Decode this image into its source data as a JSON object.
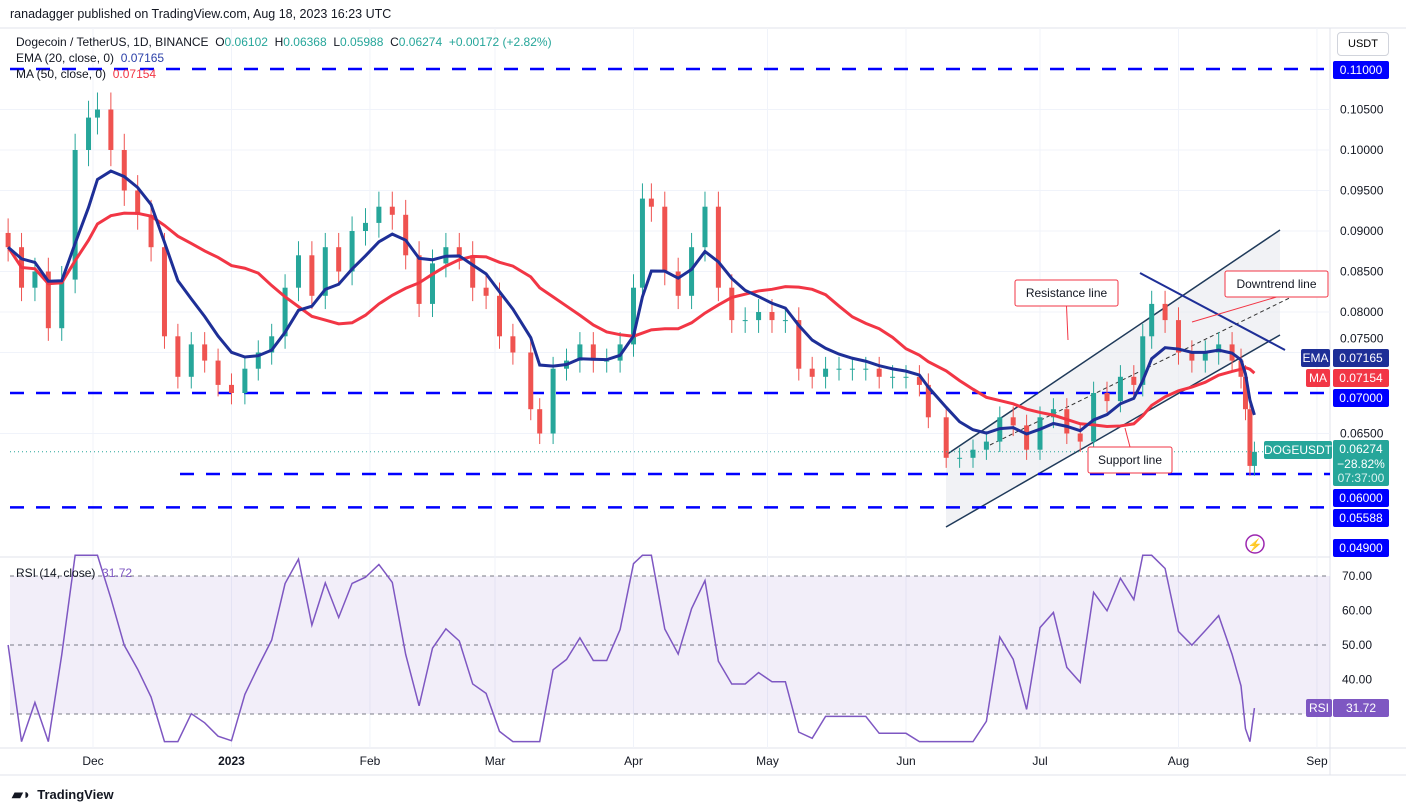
{
  "header": {
    "published": "ranadagger published on TradingView.com, Aug 18, 2023 16:23 UTC"
  },
  "legend": {
    "symbol": "Dogecoin / TetherUS, 1D, BINANCE",
    "o_label": "O",
    "o": "0.06102",
    "h_label": "H",
    "h": "0.06368",
    "l_label": "L",
    "l": "0.05988",
    "c_label": "C",
    "c": "0.06274",
    "change": "+0.00172 (+2.82%)",
    "ema_label": "EMA (20, close, 0)",
    "ema_value": "0.07165",
    "ma_label": "MA (50, close, 0)",
    "ma_value": "0.07154",
    "rsi_label": "RSI (14, close)",
    "rsi_value": "31.72"
  },
  "axis": {
    "currency": "USDT",
    "ticks": [
      "0.10500",
      "0.10000",
      "0.09500",
      "0.09000",
      "0.08500",
      "0.08000",
      "0.07500",
      "0.06500"
    ],
    "tick_values": [
      0.105,
      0.1,
      0.095,
      0.09,
      0.085,
      0.08,
      0.075,
      0.065
    ],
    "level_labels": [
      "0.11000",
      "0.07000",
      "0.06000",
      "0.05588",
      "0.04900"
    ],
    "levels": [
      0.11,
      0.07,
      0.06,
      0.05588,
      0.049
    ],
    "ema_tag": "EMA",
    "ma_tag": "MA",
    "symbol_tag": "DOGEUSDT",
    "last_price": "0.06274",
    "last_change": "−28.82%",
    "countdown": "07:37:00",
    "rsi_ticks": [
      "70.00",
      "60.00",
      "50.00",
      "40.00"
    ],
    "rsi_tag": "RSI",
    "rsi_last": "31.72",
    "time_labels": [
      "Dec",
      "2023",
      "Feb",
      "Mar",
      "Apr",
      "May",
      "Jun",
      "Jul",
      "Aug",
      "Sep"
    ]
  },
  "annotations": {
    "resistance": "Resistance line",
    "support": "Support line",
    "downtrend": "Downtrend line"
  },
  "colors": {
    "up": "#26a69a",
    "down": "#ef5350",
    "ema": "#1e2f97",
    "ma": "#f23645",
    "level": "#0000ff",
    "rsi": "#7e57c2"
  },
  "branding": "TradingView",
  "chart_data": {
    "type": "candlestick",
    "dates": [
      "2022-11-12",
      "2022-11-15",
      "2022-11-18",
      "2022-11-21",
      "2022-11-24",
      "2022-11-27",
      "2022-11-30",
      "2022-12-02",
      "2022-12-05",
      "2022-12-08",
      "2022-12-11",
      "2022-12-14",
      "2022-12-17",
      "2022-12-20",
      "2022-12-23",
      "2022-12-26",
      "2022-12-29",
      "2023-01-01",
      "2023-01-04",
      "2023-01-07",
      "2023-01-10",
      "2023-01-13",
      "2023-01-16",
      "2023-01-19",
      "2023-01-22",
      "2023-01-25",
      "2023-01-28",
      "2023-01-31",
      "2023-02-03",
      "2023-02-06",
      "2023-02-09",
      "2023-02-12",
      "2023-02-15",
      "2023-02-18",
      "2023-02-21",
      "2023-02-24",
      "2023-02-27",
      "2023-03-02",
      "2023-03-05",
      "2023-03-09",
      "2023-03-11",
      "2023-03-14",
      "2023-03-17",
      "2023-03-20",
      "2023-03-23",
      "2023-03-26",
      "2023-03-29",
      "2023-04-01",
      "2023-04-03",
      "2023-04-05",
      "2023-04-08",
      "2023-04-11",
      "2023-04-14",
      "2023-04-17",
      "2023-04-20",
      "2023-04-23",
      "2023-04-26",
      "2023-04-29",
      "2023-05-02",
      "2023-05-05",
      "2023-05-08",
      "2023-05-11",
      "2023-05-14",
      "2023-05-17",
      "2023-05-20",
      "2023-05-23",
      "2023-05-26",
      "2023-05-29",
      "2023-06-01",
      "2023-06-04",
      "2023-06-06",
      "2023-06-10",
      "2023-06-13",
      "2023-06-16",
      "2023-06-19",
      "2023-06-22",
      "2023-06-25",
      "2023-06-28",
      "2023-07-01",
      "2023-07-04",
      "2023-07-07",
      "2023-07-10",
      "2023-07-13",
      "2023-07-16",
      "2023-07-19",
      "2023-07-22",
      "2023-07-24",
      "2023-07-26",
      "2023-07-29",
      "2023-08-01",
      "2023-08-04",
      "2023-08-07",
      "2023-08-10",
      "2023-08-13",
      "2023-08-15",
      "2023-08-16",
      "2023-08-17",
      "2023-08-18"
    ],
    "close": [
      0.088,
      0.083,
      0.085,
      0.078,
      0.084,
      0.1,
      0.104,
      0.105,
      0.1,
      0.095,
      0.092,
      0.088,
      0.077,
      0.072,
      0.076,
      0.074,
      0.071,
      0.07,
      0.073,
      0.075,
      0.077,
      0.083,
      0.087,
      0.082,
      0.088,
      0.085,
      0.09,
      0.091,
      0.093,
      0.092,
      0.087,
      0.081,
      0.086,
      0.088,
      0.087,
      0.083,
      0.082,
      0.077,
      0.075,
      0.068,
      0.065,
      0.073,
      0.074,
      0.076,
      0.074,
      0.074,
      0.076,
      0.083,
      0.094,
      0.093,
      0.085,
      0.082,
      0.088,
      0.093,
      0.083,
      0.079,
      0.079,
      0.08,
      0.079,
      0.079,
      0.073,
      0.072,
      0.073,
      0.073,
      0.073,
      0.073,
      0.072,
      0.072,
      0.072,
      0.071,
      0.067,
      0.062,
      0.062,
      0.063,
      0.064,
      0.067,
      0.066,
      0.063,
      0.067,
      0.068,
      0.065,
      0.064,
      0.07,
      0.069,
      0.072,
      0.071,
      0.077,
      0.081,
      0.079,
      0.075,
      0.074,
      0.075,
      0.076,
      0.074,
      0.072,
      0.068,
      0.061,
      0.06274
    ],
    "ylim": [
      0.049,
      0.11
    ],
    "y_scale": "linear",
    "horizontal_levels": [
      0.11,
      0.07,
      0.06,
      0.05588
    ],
    "rsi": {
      "overbought": 70,
      "oversold": 30,
      "last": 31.72
    }
  }
}
